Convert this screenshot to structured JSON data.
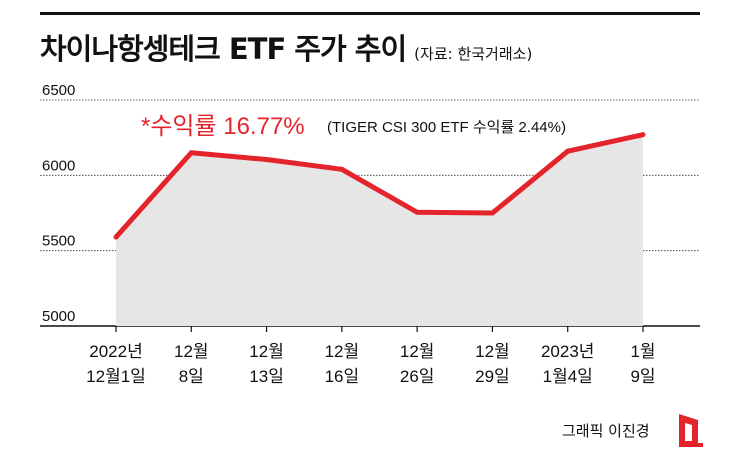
{
  "header": {
    "title": "차이나항셍테크 ETF 주가 추이",
    "source": "(자료: 한국거래소)"
  },
  "credit": "그래픽 이진경",
  "colors": {
    "line": "#e3242b",
    "area": "#e6e6e6",
    "grid": "#333333"
  },
  "chart_data": {
    "type": "area",
    "title": "차이나항셍테크 ETF 주가 추이",
    "xlabel": "",
    "ylabel": "",
    "categories": [
      [
        "2022년",
        "12월1일"
      ],
      [
        "12월",
        "8일"
      ],
      [
        "12월",
        "13일"
      ],
      [
        "12월",
        "16일"
      ],
      [
        "12월",
        "26일"
      ],
      [
        "12월",
        "29일"
      ],
      [
        "2023년",
        "1월4일"
      ],
      [
        "1월",
        "9일"
      ]
    ],
    "values": [
      5590,
      6150,
      6105,
      6040,
      5755,
      5750,
      6160,
      6270
    ],
    "yticks": [
      5000,
      5500,
      6000,
      6500
    ],
    "ylim": [
      5000,
      6500
    ],
    "grid": true,
    "annotation": {
      "main": "*수익률 16.77%",
      "note": "(TIGER CSI 300 ETF 수익률 2.44%)"
    }
  }
}
